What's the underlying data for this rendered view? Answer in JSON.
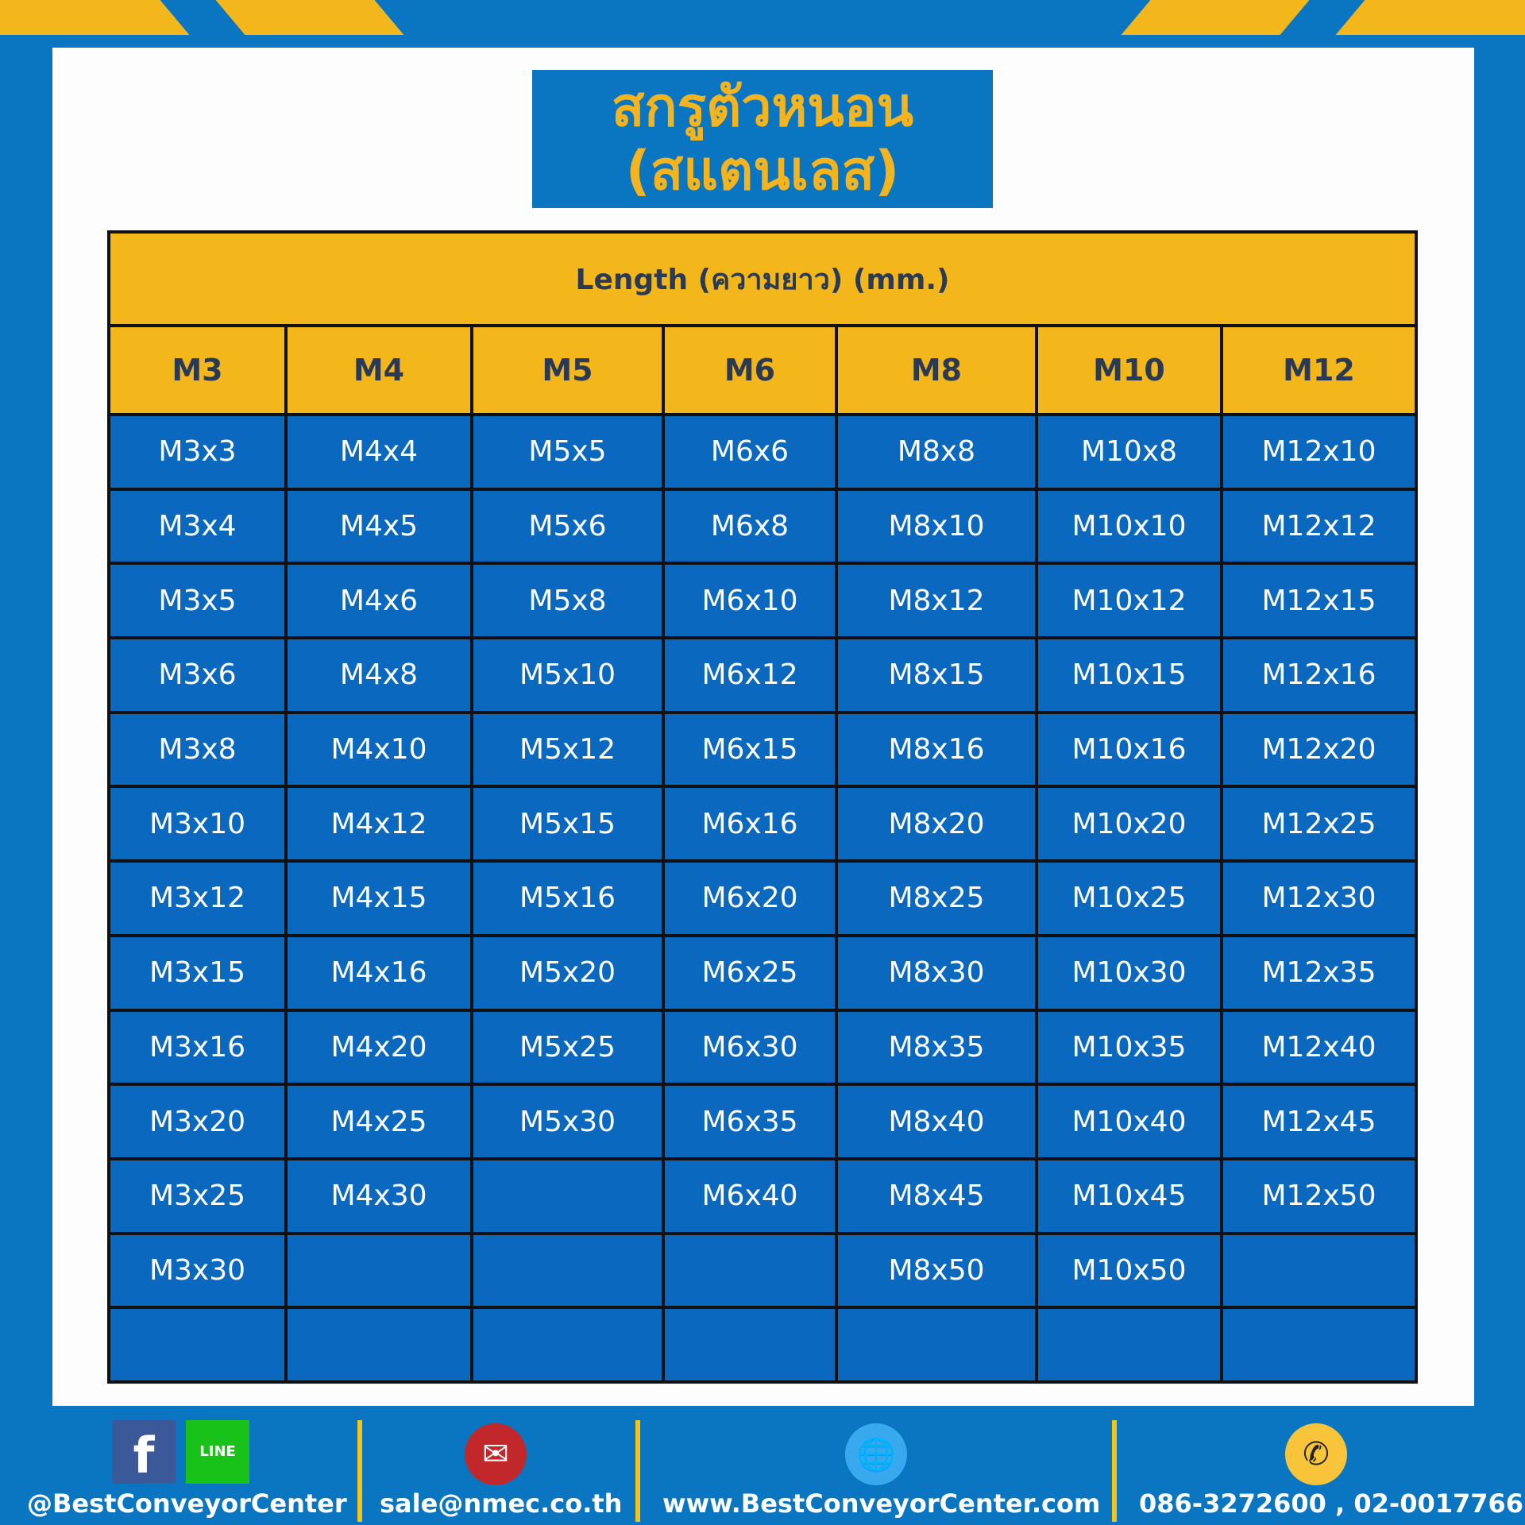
{
  "title": {
    "line1": "สกรูตัวหนอน",
    "line2": "(สแตนเลส)"
  },
  "table": {
    "header": "Length (ความยาว) (mm.)",
    "columns": [
      "M3",
      "M4",
      "M5",
      "M6",
      "M8",
      "M10",
      "M12"
    ],
    "rows": [
      [
        "M3x3",
        "M4x4",
        "M5x5",
        "M6x6",
        "M8x8",
        "M10x8",
        "M12x10"
      ],
      [
        "M3x4",
        "M4x5",
        "M5x6",
        "M6x8",
        "M8x10",
        "M10x10",
        "M12x12"
      ],
      [
        "M3x5",
        "M4x6",
        "M5x8",
        "M6x10",
        "M8x12",
        "M10x12",
        "M12x15"
      ],
      [
        "M3x6",
        "M4x8",
        "M5x10",
        "M6x12",
        "M8x15",
        "M10x15",
        "M12x16"
      ],
      [
        "M3x8",
        "M4x10",
        "M5x12",
        "M6x15",
        "M8x16",
        "M10x16",
        "M12x20"
      ],
      [
        "M3x10",
        "M4x12",
        "M5x15",
        "M6x16",
        "M8x20",
        "M10x20",
        "M12x25"
      ],
      [
        "M3x12",
        "M4x15",
        "M5x16",
        "M6x20",
        "M8x25",
        "M10x25",
        "M12x30"
      ],
      [
        "M3x15",
        "M4x16",
        "M5x20",
        "M6x25",
        "M8x30",
        "M10x30",
        "M12x35"
      ],
      [
        "M3x16",
        "M4x20",
        "M5x25",
        "M6x30",
        "M8x35",
        "M10x35",
        "M12x40"
      ],
      [
        "M3x20",
        "M4x25",
        "M5x30",
        "M6x35",
        "M8x40",
        "M10x40",
        "M12x45"
      ],
      [
        "M3x25",
        "M4x30",
        "",
        "M6x40",
        "M8x45",
        "M10x45",
        "M12x50"
      ],
      [
        "M3x30",
        "",
        "",
        "",
        "M8x50",
        "M10x50",
        ""
      ],
      [
        "",
        "",
        "",
        "",
        "",
        "",
        ""
      ]
    ]
  },
  "footer": {
    "social": "@BestConveyorCenter",
    "email": "sale@nmec.co.th",
    "website": "www.BestConveyorCenter.com",
    "phone": "086-3272600 , 02-0017766",
    "icons": [
      "facebook-icon",
      "line-icon",
      "email-icon",
      "globe-icon",
      "phone-icon"
    ],
    "facebook_glyph": "f",
    "line_glyph": "LINE"
  },
  "colors": {
    "brand_blue": "#0a76c2",
    "accent_yellow": "#f3b71b",
    "cell_blue": "#0a68bf"
  }
}
